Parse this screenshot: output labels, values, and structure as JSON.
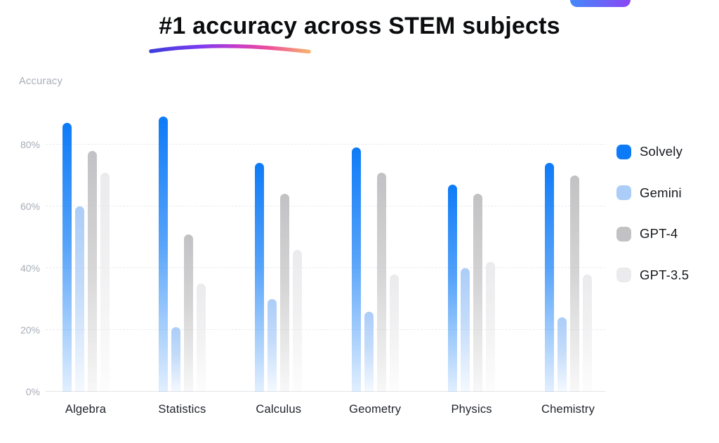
{
  "page": {
    "title": "#1 accuracy across STEM subjects",
    "badge_button": {
      "gradient": [
        "#4389fa",
        "#8a46f5"
      ]
    },
    "underline_gradient": [
      "#3d3ddb",
      "#7a3bf0",
      "#c73bc8",
      "#ee4f9b",
      "#f5b26e"
    ]
  },
  "chart_data": {
    "type": "bar",
    "title": "#1 accuracy across STEM subjects",
    "axis_title": "Accuracy",
    "categories": [
      "Algebra",
      "Statistics",
      "Calculus",
      "Geometry",
      "Physics",
      "Chemistry"
    ],
    "series": [
      {
        "name": "Solvely",
        "color": "#0d7bf7",
        "values": [
          87,
          89,
          74,
          79,
          67,
          74
        ]
      },
      {
        "name": "Gemini",
        "color": "#abcdf8",
        "values": [
          60,
          21,
          30,
          26,
          40,
          24
        ]
      },
      {
        "name": "GPT-4",
        "color": "#c2c2c4",
        "values": [
          78,
          51,
          64,
          71,
          64,
          70
        ]
      },
      {
        "name": "GPT-3.5",
        "color": "#ebebed",
        "values": [
          71,
          35,
          46,
          38,
          42,
          38
        ]
      }
    ],
    "y_ticks": [
      {
        "value": 0,
        "label": "0%"
      },
      {
        "value": 20,
        "label": "20%"
      },
      {
        "value": 40,
        "label": "40%"
      },
      {
        "value": 60,
        "label": "60%"
      },
      {
        "value": 80,
        "label": "80%"
      }
    ],
    "ylim": [
      0,
      100
    ],
    "grid": true,
    "legend_position": "right"
  }
}
